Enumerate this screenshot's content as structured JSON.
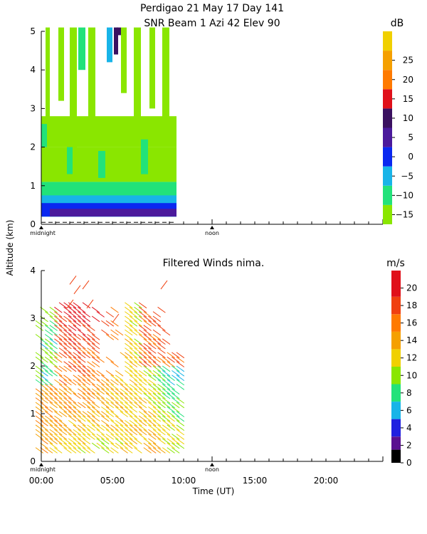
{
  "header": {
    "title_line1": "Perdigao  21 May 17 Day 141",
    "title_line2": "SNR Beam  1 Azi   42 Elev 90"
  },
  "y_axis_label": "Altitude (km)",
  "chart_data": [
    {
      "type": "heatmap",
      "name": "snr-panel",
      "ylim": [
        0,
        5
      ],
      "yticks": [
        "0",
        "1",
        "2",
        "3",
        "4",
        "5"
      ],
      "x_markers": [
        "midnight",
        "noon"
      ],
      "xlim_hours": [
        0,
        24
      ],
      "data_extent_hours": [
        0,
        9.5
      ],
      "data_extent_km": [
        0.2,
        5.1
      ],
      "colorbar": {
        "unit": "dB",
        "tick_labels": [
          "−15",
          "−10",
          "−5",
          "0",
          "5",
          "10",
          "15",
          "20",
          "25"
        ],
        "bands": [
          {
            "from": -17.5,
            "to": -12.5,
            "color": "#8ae600"
          },
          {
            "from": -12.5,
            "to": -7.5,
            "color": "#22e27a"
          },
          {
            "from": -7.5,
            "to": -2.5,
            "color": "#18b4e8"
          },
          {
            "from": -2.5,
            "to": 2.5,
            "color": "#0a28f0"
          },
          {
            "from": 2.5,
            "to": 7.5,
            "color": "#4b1a9c"
          },
          {
            "from": 7.5,
            "to": 12.5,
            "color": "#3a1060"
          },
          {
            "from": 12.5,
            "to": 17.5,
            "color": "#e0101a"
          },
          {
            "from": 17.5,
            "to": 22.5,
            "color": "#ff7a00"
          },
          {
            "from": 22.5,
            "to": 27.5,
            "color": "#f5a000"
          },
          {
            "from": 27.5,
            "to": 32.5,
            "color": "#f0d000"
          }
        ]
      },
      "layers": [
        {
          "hours": [
            0,
            9.5
          ],
          "km": [
            0.2,
            1.1
          ],
          "color": "#22e27a"
        },
        {
          "hours": [
            0,
            9.5
          ],
          "km": [
            0.2,
            0.75
          ],
          "color": "#18b4e8"
        },
        {
          "hours": [
            0,
            9.5
          ],
          "km": [
            0.2,
            0.55
          ],
          "color": "#0a28f0"
        },
        {
          "hours": [
            0.6,
            9.5
          ],
          "km": [
            0.2,
            0.4
          ],
          "color": "#4b1a9c"
        },
        {
          "hours": [
            0,
            9.5
          ],
          "km": [
            1.1,
            2.0
          ],
          "color": "#8ae600"
        },
        {
          "hours": [
            0,
            9.5
          ],
          "km": [
            2.0,
            2.8
          ],
          "color": "#8ae600"
        }
      ],
      "streaks": [
        {
          "hours": [
            0.3,
            0.6
          ],
          "km": [
            2.5,
            5.1
          ],
          "color": "#8ae600"
        },
        {
          "hours": [
            1.2,
            1.6
          ],
          "km": [
            3.2,
            5.1
          ],
          "color": "#8ae600"
        },
        {
          "hours": [
            2.0,
            2.5
          ],
          "km": [
            1.8,
            5.1
          ],
          "color": "#8ae600"
        },
        {
          "hours": [
            2.6,
            3.1
          ],
          "km": [
            4.0,
            5.1
          ],
          "color": "#22e27a"
        },
        {
          "hours": [
            3.3,
            3.8
          ],
          "km": [
            2.6,
            5.1
          ],
          "color": "#8ae600"
        },
        {
          "hours": [
            4.6,
            5.0
          ],
          "km": [
            4.2,
            5.1
          ],
          "color": "#18b4e8"
        },
        {
          "hours": [
            5.1,
            5.4
          ],
          "km": [
            4.4,
            5.1
          ],
          "color": "#3a1060"
        },
        {
          "hours": [
            5.6,
            6.0
          ],
          "km": [
            3.4,
            5.1
          ],
          "color": "#8ae600"
        },
        {
          "hours": [
            6.5,
            7.0
          ],
          "km": [
            2.2,
            5.1
          ],
          "color": "#8ae600"
        },
        {
          "hours": [
            7.6,
            8.0
          ],
          "km": [
            3.0,
            5.1
          ],
          "color": "#8ae600"
        },
        {
          "hours": [
            8.5,
            9.0
          ],
          "km": [
            2.6,
            5.1
          ],
          "color": "#8ae600"
        },
        {
          "hours": [
            0.0,
            0.4
          ],
          "km": [
            2.0,
            2.6
          ],
          "color": "#22e27a"
        },
        {
          "hours": [
            1.8,
            2.2
          ],
          "km": [
            1.3,
            2.0
          ],
          "color": "#22e27a"
        },
        {
          "hours": [
            4.0,
            4.5
          ],
          "km": [
            1.2,
            1.9
          ],
          "color": "#22e27a"
        },
        {
          "hours": [
            7.0,
            7.5
          ],
          "km": [
            1.3,
            2.2
          ],
          "color": "#22e27a"
        },
        {
          "hours": [
            5.3,
            5.6
          ],
          "km": [
            4.9,
            5.1
          ],
          "color": "#3a1060"
        }
      ]
    },
    {
      "type": "wind_barbs",
      "name": "winds-panel",
      "title": "Filtered Winds nima.",
      "ylim": [
        0,
        4
      ],
      "yticks": [
        "0",
        "1",
        "2",
        "3",
        "4"
      ],
      "x_markers": [
        "midnight",
        "noon"
      ],
      "xticks": [
        "00:00",
        "05:00",
        "10:00",
        "15:00",
        "20:00"
      ],
      "xlabel": "Time (UT)",
      "xlim_hours": [
        0,
        24
      ],
      "colorbar": {
        "unit": "m/s",
        "tick_labels": [
          "0",
          "2",
          "4",
          "6",
          "8",
          "10",
          "12",
          "14",
          "16",
          "18",
          "20"
        ],
        "bands": [
          {
            "from": 0,
            "to": 1.5,
            "color": "#000000"
          },
          {
            "from": 1.5,
            "to": 3,
            "color": "#5a1090"
          },
          {
            "from": 3,
            "to": 5,
            "color": "#2020e0"
          },
          {
            "from": 5,
            "to": 7,
            "color": "#18b4e8"
          },
          {
            "from": 7,
            "to": 9,
            "color": "#22e27a"
          },
          {
            "from": 9,
            "to": 11,
            "color": "#8ae600"
          },
          {
            "from": 11,
            "to": 13,
            "color": "#f0d000"
          },
          {
            "from": 13,
            "to": 15,
            "color": "#f5a000"
          },
          {
            "from": 15,
            "to": 17,
            "color": "#ff7a00"
          },
          {
            "from": 17,
            "to": 19,
            "color": "#f04010"
          },
          {
            "from": 19,
            "to": 22,
            "color": "#e0101a"
          }
        ]
      }
    }
  ]
}
